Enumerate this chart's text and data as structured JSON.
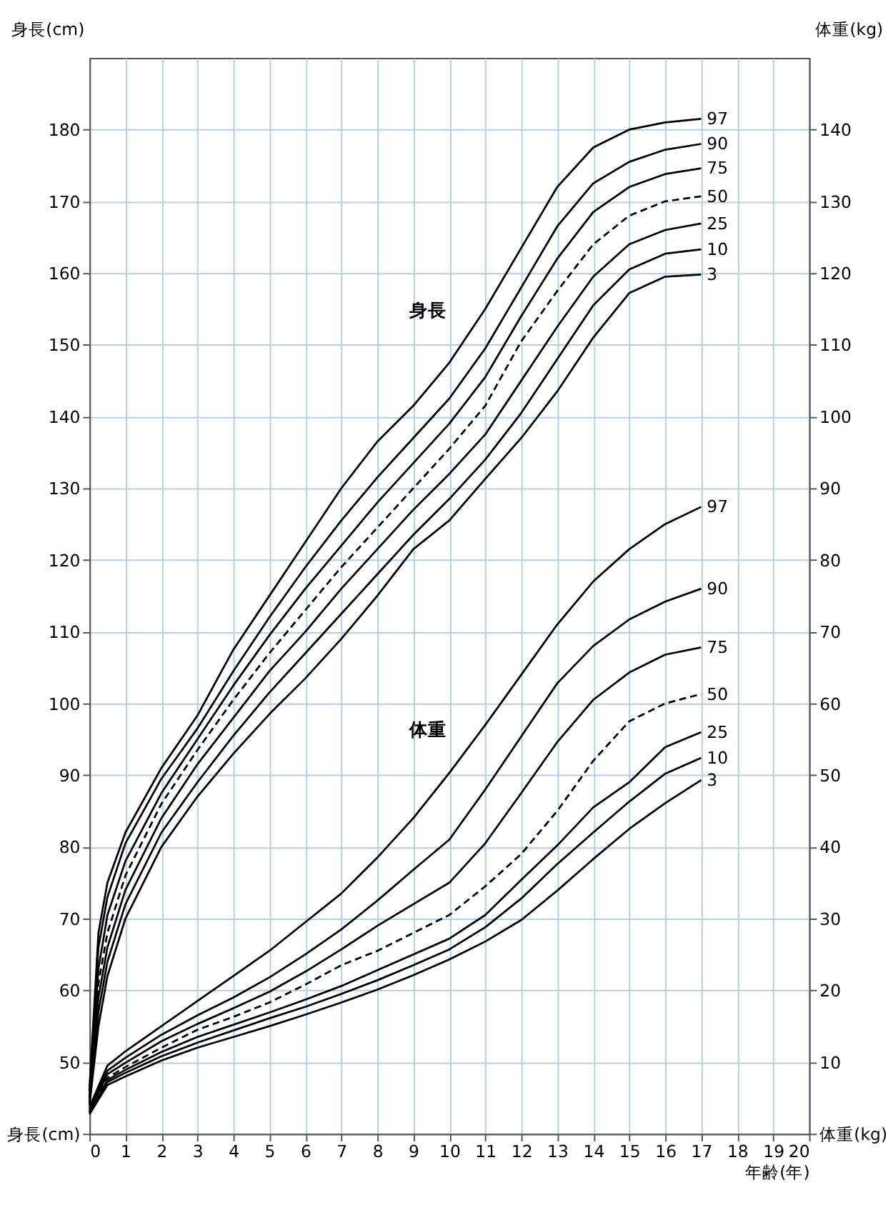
{
  "chart_data": {
    "type": "line",
    "xlabel": "年齢(年)",
    "ylabel": "身長(cm)",
    "y2label": "体重(kg)",
    "x": [
      0,
      0.25,
      0.5,
      1,
      2,
      3,
      4,
      5,
      6,
      7,
      8,
      9,
      10,
      11,
      12,
      13,
      14,
      15,
      16,
      17
    ],
    "xlim": [
      0,
      20
    ],
    "xticks": [
      0,
      1,
      2,
      3,
      4,
      5,
      6,
      7,
      8,
      9,
      10,
      11,
      12,
      13,
      14,
      15,
      16,
      17,
      18,
      19,
      20
    ],
    "ylim": [
      40,
      190
    ],
    "yticks": [
      {
        "value": 40,
        "label": "身長(cm)"
      },
      50,
      60,
      70,
      80,
      90,
      100,
      110,
      120,
      130,
      140,
      150,
      160,
      170,
      180
    ],
    "y2lim": [
      0,
      150
    ],
    "y2ticks": [
      {
        "value": 0,
        "label": "体重(kg)"
      },
      10,
      20,
      30,
      40,
      50,
      60,
      70,
      80,
      90,
      100,
      110,
      120,
      130,
      140
    ],
    "grid": true,
    "annotations": [
      "身長",
      "体重"
    ],
    "series": [
      {
        "name": "97",
        "color": "#000000",
        "line_style": "solid",
        "values": [
          46,
          68,
          75,
          82,
          91,
          98.3,
          107.5,
          115,
          122.5,
          130,
          136.5,
          141.5,
          147.5,
          155,
          163.5,
          172,
          177.5,
          180,
          181,
          181.5
        ]
      },
      {
        "name": "90",
        "color": "#000000",
        "line_style": "solid",
        "values": [
          46,
          66,
          73,
          80.5,
          89.5,
          96.5,
          104.5,
          112,
          119,
          125.5,
          131.5,
          137,
          142.5,
          149.5,
          158,
          166.5,
          172.5,
          175.5,
          177.2,
          178
        ]
      },
      {
        "name": "75",
        "color": "#000000",
        "line_style": "solid",
        "values": [
          45,
          63,
          70.5,
          78,
          87.5,
          95,
          102.5,
          109.5,
          116,
          122,
          128,
          133.5,
          139,
          145.5,
          154,
          162,
          168.5,
          172,
          173.8,
          174.6
        ]
      },
      {
        "name": "50",
        "color": "#000000",
        "line_style": "dashed",
        "values": [
          45,
          61,
          68,
          76,
          86,
          93.5,
          100.5,
          107,
          113,
          119,
          124.5,
          130,
          135.5,
          141.5,
          150.5,
          157.5,
          164,
          168,
          170,
          170.7
        ]
      },
      {
        "name": "25",
        "color": "#000000",
        "line_style": "solid",
        "values": [
          44.5,
          59,
          66,
          74,
          84,
          91.5,
          98,
          104.5,
          110,
          116,
          121.5,
          127,
          132,
          137.5,
          145,
          152.5,
          159.5,
          164,
          166,
          166.9
        ]
      },
      {
        "name": "10",
        "color": "#000000",
        "line_style": "solid",
        "values": [
          44,
          57,
          64,
          72,
          82,
          89,
          95.5,
          101.5,
          107,
          112.5,
          118,
          123.5,
          128.5,
          134,
          140.5,
          148,
          155.5,
          160.5,
          162.7,
          163.3
        ]
      },
      {
        "name": "3",
        "color": "#000000",
        "line_style": "solid",
        "values": [
          44,
          55,
          62,
          70,
          80,
          87,
          93,
          98.5,
          103.5,
          109,
          115,
          121.5,
          125.5,
          131.3,
          137,
          143.5,
          151,
          157.2,
          159.5,
          159.8
        ]
      },
      {
        "name": "97",
        "color": "#000000",
        "line_style": "solid",
        "axis": "y2",
        "x": [
          0,
          0.5,
          1,
          2,
          3,
          4,
          5,
          6,
          7,
          8,
          9,
          10,
          11,
          12,
          13,
          14,
          15,
          16,
          17
        ],
        "values": [
          3.7,
          9.5,
          11.5,
          15,
          18.5,
          22,
          25.5,
          29.5,
          33.5,
          38.5,
          44,
          50.3,
          57,
          64,
          71,
          77,
          81.5,
          85,
          87.4
        ]
      },
      {
        "name": "90",
        "color": "#000000",
        "line_style": "solid",
        "axis": "y2",
        "x": [
          0,
          0.5,
          1,
          2,
          3,
          4,
          5,
          6,
          7,
          8,
          9,
          10,
          11,
          12,
          13,
          14,
          15,
          16,
          17
        ],
        "values": [
          3.5,
          8.8,
          10.6,
          13.8,
          16.5,
          19,
          21.8,
          25,
          28.5,
          32.5,
          36.8,
          41,
          48,
          55.4,
          62.8,
          68,
          71.7,
          74.2,
          76
        ]
      },
      {
        "name": "75",
        "color": "#000000",
        "line_style": "solid",
        "axis": "y2",
        "x": [
          0,
          0.5,
          1,
          2,
          3,
          4,
          5,
          6,
          7,
          8,
          9,
          10,
          11,
          12,
          13,
          14,
          15,
          16,
          17
        ],
        "values": [
          3.3,
          8.3,
          9.9,
          12.9,
          15.3,
          17.5,
          19.8,
          22.6,
          25.7,
          29,
          32,
          35,
          40.5,
          47.5,
          54.6,
          60.5,
          64.3,
          66.8,
          67.8
        ]
      },
      {
        "name": "50",
        "color": "#000000",
        "line_style": "dashed",
        "axis": "y2",
        "x": [
          0,
          0.5,
          1,
          2,
          3,
          4,
          5,
          6,
          7,
          8,
          9,
          10,
          11,
          12,
          13,
          14,
          15,
          16,
          17
        ],
        "values": [
          3.1,
          7.8,
          9.3,
          12,
          14.5,
          16.3,
          18.3,
          20.8,
          23.5,
          25.5,
          28,
          30.5,
          34.5,
          39,
          45,
          52,
          57.5,
          60,
          61.3
        ]
      },
      {
        "name": "25",
        "color": "#000000",
        "line_style": "solid",
        "axis": "y2",
        "x": [
          0,
          0.5,
          1,
          2,
          3,
          4,
          5,
          6,
          7,
          8,
          9,
          10,
          11,
          12,
          13,
          14,
          15,
          16,
          17
        ],
        "values": [
          3,
          7.5,
          8.9,
          11.4,
          13.5,
          15.2,
          16.9,
          18.7,
          20.6,
          22.8,
          25,
          27.2,
          30.5,
          35.4,
          40.2,
          45.5,
          49,
          53.9,
          56
        ]
      },
      {
        "name": "10",
        "color": "#000000",
        "line_style": "solid",
        "axis": "y2",
        "x": [
          0,
          0.5,
          1,
          2,
          3,
          4,
          5,
          6,
          7,
          8,
          9,
          10,
          11,
          12,
          13,
          14,
          15,
          16,
          17
        ],
        "values": [
          2.9,
          7.2,
          8.5,
          10.8,
          12.7,
          14.4,
          16.1,
          17.7,
          19.5,
          21.4,
          23.5,
          25.7,
          28.8,
          32.8,
          37.6,
          42,
          46.3,
          50.2,
          52.4
        ]
      },
      {
        "name": "3",
        "color": "#000000",
        "line_style": "solid",
        "axis": "y2",
        "x": [
          0,
          0.5,
          1,
          2,
          3,
          4,
          5,
          6,
          7,
          8,
          9,
          10,
          11,
          12,
          13,
          14,
          15,
          16,
          17
        ],
        "values": [
          2.7,
          6.8,
          8,
          10.2,
          12,
          13.5,
          15,
          16.6,
          18.3,
          20.1,
          22.1,
          24.3,
          26.8,
          29.8,
          33.9,
          38.3,
          42.5,
          46.1,
          49.3
        ]
      }
    ]
  }
}
